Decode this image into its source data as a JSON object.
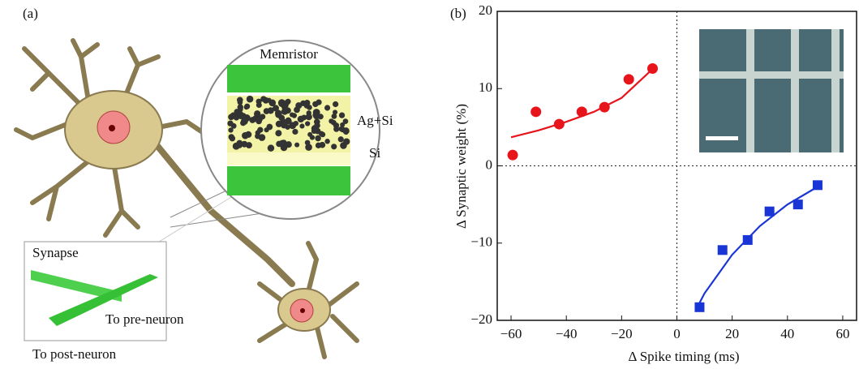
{
  "panel_a": {
    "label": "(a)",
    "memristor": "Memristor",
    "ag_si": "Ag+Si",
    "si": "Si",
    "synapse": "Synapse",
    "pre": "To pre-neuron",
    "post": "To post-neuron"
  },
  "chart_data": {
    "type": "scatter",
    "label": "(b)",
    "x_label": "Δ Spike timing (ms)",
    "y_label": "Δ Synaptic weight (%)",
    "xlim": [
      -65,
      65
    ],
    "ylim": [
      -20,
      20
    ],
    "xticks": [
      {
        "value": -60,
        "label": "−60"
      },
      {
        "value": -40,
        "label": "−40"
      },
      {
        "value": -20,
        "label": "−20"
      },
      0,
      20,
      40,
      60
    ],
    "yticks": [
      {
        "value": -20,
        "label": "−20"
      },
      {
        "value": -10,
        "label": "−10"
      },
      0,
      10,
      20
    ],
    "zero_lines": true,
    "series": [
      {
        "color": "#e8141c",
        "marker": "circle",
        "x": [
          -59.4,
          -51,
          -42.6,
          -34.4,
          -26.2,
          -17.4,
          -8.8
        ],
        "values": [
          1.4,
          7,
          5.4,
          7,
          7.6,
          11.2,
          12.6
        ]
      },
      {
        "color": "#1a35d6",
        "marker": "square",
        "x": [
          8.2,
          16.5,
          25.6,
          33.5,
          43.8,
          50.9
        ],
        "values": [
          -18.3,
          -10.9,
          -9.6,
          -5.9,
          -5,
          -2.5
        ]
      }
    ],
    "fits": [
      {
        "color": "#e8141c",
        "x": [
          -60,
          -50,
          -40,
          -30,
          -20,
          -8
        ],
        "values": [
          3.7,
          4.6,
          5.7,
          7.0,
          8.8,
          12.8
        ]
      },
      {
        "color": "#1a35d6",
        "x": [
          6.8,
          10,
          20,
          30,
          40,
          50,
          52
        ],
        "values": [
          -18.7,
          -16.5,
          -11.5,
          -7.8,
          -5,
          -2.9,
          -2.5
        ]
      }
    ]
  }
}
